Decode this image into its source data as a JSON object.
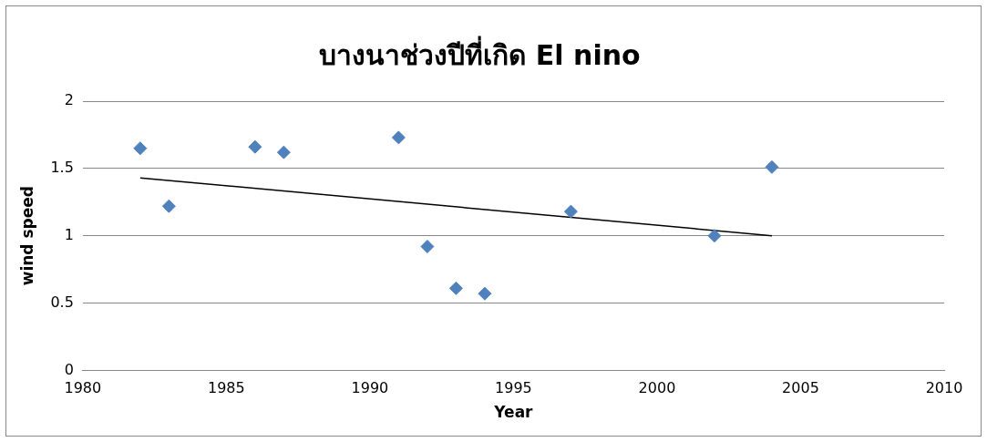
{
  "chart_data": {
    "type": "scatter",
    "title": "บางนาช่วงปีที่เกิด El nino",
    "xlabel": "Year",
    "ylabel": "wind speed",
    "xlim": [
      1980,
      2010
    ],
    "xticks": [
      1980,
      1985,
      1990,
      1995,
      2000,
      2005,
      2010
    ],
    "ylim": [
      0,
      2
    ],
    "yticks": [
      0,
      0.5,
      1,
      1.5,
      2
    ],
    "grid": "y",
    "marker": "diamond",
    "series": [
      {
        "color": "#4f81bd",
        "x": [
          1982,
          1983,
          1986,
          1987,
          1991,
          1992,
          1993,
          1994,
          1997,
          2002,
          2004
        ],
        "values": [
          1.65,
          1.22,
          1.66,
          1.62,
          1.73,
          0.92,
          0.61,
          0.57,
          1.18,
          1.0,
          1.51
        ]
      },
      {
        "type": "line",
        "color": "#000000",
        "marker": "none",
        "x": [
          1982,
          2004
        ],
        "values": [
          1.43,
          1.0
        ]
      }
    ]
  }
}
